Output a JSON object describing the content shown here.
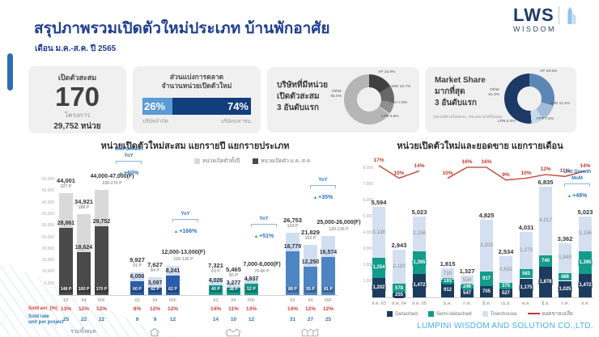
{
  "header": {
    "title": "สรุปภาพรวมเปิดตัวใหม่ประเภท บ้านพักอาศัย",
    "subtitle": "เดือน ม.ค.-ส.ค. ปี 2565",
    "logo_name": "LWS",
    "logo_sub": "WISDOM"
  },
  "stats": {
    "cumulative": {
      "label": "เปิดตัวสะสม",
      "value": "170",
      "unit_label": "โครงการ",
      "units": "29,752 หน่วย"
    },
    "market_split": {
      "title1": "ส่วนแบ่งการตลาด",
      "title2": "จำนวนหน่วยเปิดตัวใหม่",
      "left_pct": "26%",
      "left_label": "บริษัทจำกัด",
      "right_pct": "74%",
      "right_label": "บริษัทมหาชน",
      "left_color": "#5b9bd5",
      "right_color": "#123e7d"
    },
    "top_launch": {
      "title1": "บริษัทที่มีหน่วย",
      "title2": "เปิดตัวสะสม",
      "title3": "3 อันดับแรก"
    },
    "top_share": {
      "title1": "Market Share",
      "title2": "มากที่สุด",
      "title3": "3 อันดับแรก",
      "note": "(หน่วยที่ขายได้ของบ. /หน่วยขายได้ทั้งหมด)"
    }
  },
  "chart_data": [
    {
      "id": "top_launch_donut",
      "type": "pie",
      "segments": [
        {
          "label": "AP 15.9%",
          "value": 15.9,
          "color": "#404040"
        },
        {
          "label": "SIRI 10.7%",
          "value": 10.7,
          "color": "#686868"
        },
        {
          "label": "PSH 7.8%",
          "value": 7.8,
          "color": "#8f8f8f"
        },
        {
          "label": "LPN 0.6%",
          "value": 0.6,
          "color": "#dcdcdc"
        },
        {
          "label": "Other 65.0%",
          "value": 65.0,
          "color": "#b5b5b5"
        }
      ]
    },
    {
      "id": "market_share_donut",
      "type": "pie",
      "segments": [
        {
          "label": "AP 29.5%",
          "value": 29.5,
          "color": "#5b87b5"
        },
        {
          "label": "SIRI 11.2%",
          "value": 11.2,
          "color": "#a3bcd8"
        },
        {
          "label": "FPT 7.6%",
          "value": 7.6,
          "color": "#c9d8ea"
        },
        {
          "label": "LPN 0.3%",
          "value": 0.3,
          "color": "#e8eef5"
        },
        {
          "label": "Other 51.3%",
          "value": 51.3,
          "color": "#1d3a66"
        }
      ]
    },
    {
      "id": "yearly_by_type",
      "type": "bar",
      "title": "หน่วยเปิดตัวใหม่สะสม แยกรายปี แยกรายประเภท",
      "legend": [
        "หน่วยเปิดตัวทั้งปี",
        "หน่วยเปิดตัว ม.ค.-ส.ค."
      ],
      "legend_colors": [
        "#d9d9d9",
        "#4a4a4a"
      ],
      "ylim": [
        0,
        50000
      ],
      "yticks": [
        "50,000",
        "45,000",
        "40,000",
        "35,000",
        "30,000",
        "25,000",
        "20,000",
        "15,000",
        "10,000",
        "5,000",
        "-"
      ],
      "row_labels": {
        "sold_avr": "Sold avr. (%)",
        "sold_rate1": "Sold rate",
        "sold_rate2": "unit per project"
      },
      "groups": [
        {
          "key": "total",
          "name": "รวมทั้งหมด",
          "icon": "none",
          "color_full": "#d9d9d9",
          "color_partial": "#4a4a4a",
          "growth": {
            "lines": [
              "Unit Growth",
              "YoY"
            ],
            "pct": "+60%"
          },
          "bars": [
            {
              "year": "63",
              "full_label": "44,001",
              "full_value": 44001,
              "full_projects": "227 P",
              "partial_label": "28,861",
              "partial_value": 28861,
              "partial_projects": "148 P"
            },
            {
              "year": "64",
              "full_label": "34,921",
              "full_value": 34921,
              "full_projects": "188 P",
              "partial_label": "18,624",
              "partial_value": 18624,
              "partial_projects": "100 P"
            },
            {
              "year": "65F",
              "full_label": "44,000-47,000(F)",
              "full_value": 45500,
              "full_projects": "230-270 P",
              "partial_label": "29,752",
              "partial_value": 29752,
              "partial_projects": "170 P"
            }
          ],
          "sold_avr": [
            "13%",
            "12%",
            "12%"
          ],
          "sold_rate": [
            "25",
            "22",
            "22"
          ]
        },
        {
          "key": "detached",
          "name": "",
          "icon": "detached",
          "color_full": "#cfdef2",
          "color_partial": "#2b5ca8",
          "growth": {
            "lines": [
              "YoY"
            ],
            "pct": "+166%"
          },
          "bars": [
            {
              "year": "63",
              "full_label": "9,927",
              "full_value": 9927,
              "full_projects": "91 P",
              "partial_label": "6,056",
              "partial_value": 6056,
              "partial_projects": "60 P"
            },
            {
              "year": "64",
              "full_label": "7,627",
              "full_value": 7627,
              "full_projects": "84 P",
              "partial_label": "3,097",
              "partial_value": 3097,
              "partial_projects": "42 P"
            },
            {
              "year": "65F",
              "full_label": "12,000-13,000(F)",
              "full_value": 12500,
              "full_projects": "120-130 P",
              "partial_label": "8,241",
              "partial_value": 8241,
              "partial_projects": "62 P"
            }
          ],
          "sold_avr": [
            "8%",
            "12%",
            "12%"
          ],
          "sold_rate": [
            "9",
            "9",
            "12"
          ]
        },
        {
          "key": "semi_detached",
          "name": "",
          "icon": "semi",
          "color_full": "#cfdef2",
          "color_partial": "#129c8a",
          "growth": {
            "lines": [
              "YoY"
            ],
            "pct": "+51%"
          },
          "bars": [
            {
              "year": "63",
              "full_label": "7,321",
              "full_value": 7321,
              "full_projects": "63 P",
              "partial_label": "4,026",
              "partial_value": 4026,
              "partial_projects": "40 P"
            },
            {
              "year": "64",
              "full_label": "5,465",
              "full_value": 5465,
              "full_projects": "50 P",
              "partial_label": "3,277",
              "partial_value": 3277,
              "partial_projects": "38 P"
            },
            {
              "year": "65F",
              "full_label": "7,000-8,000(F)",
              "full_value": 7500,
              "full_projects": "70-80 P",
              "partial_label": "4,937",
              "partial_value": 4937,
              "partial_projects": "52 P"
            }
          ],
          "sold_avr": [
            "14%",
            "11%",
            "13%"
          ],
          "sold_rate": [
            "14",
            "10",
            "12"
          ]
        },
        {
          "key": "townhouse",
          "name": "",
          "icon": "town",
          "color_full": "#cfdef2",
          "color_partial": "#4d84c4",
          "growth": {
            "lines": [
              "YoY"
            ],
            "pct": "+35%"
          },
          "bars": [
            {
              "year": "63",
              "full_label": "26,753",
              "full_value": 26753,
              "full_projects": "124 P",
              "partial_label": "18,779",
              "partial_value": 18779,
              "partial_projects": "88 P"
            },
            {
              "year": "64",
              "full_label": "21,829",
              "full_value": 21829,
              "full_projects": "102 P",
              "partial_label": "12,250",
              "partial_value": 12250,
              "partial_projects": "55 P"
            },
            {
              "year": "65F",
              "full_label": "25,000-26,000(F)",
              "full_value": 25500,
              "full_projects": "120-130 P",
              "partial_label": "16,574",
              "partial_value": 16574,
              "partial_projects": "81 P"
            }
          ],
          "sold_avr": [
            "14%",
            "12%",
            "12%"
          ],
          "sold_rate": [
            "31",
            "27",
            "25"
          ]
        }
      ]
    },
    {
      "id": "monthly_launch_sales",
      "type": "stacked_bar_line",
      "title": "หน่วยเปิดตัวใหม่และยอดขาย แยกรายเดือน",
      "ylim": [
        0,
        8000
      ],
      "yticks": [
        "8,000",
        "7,000",
        "6,000",
        "5,000",
        "4,000",
        "3,000",
        "2,000",
        "1,000",
        "-"
      ],
      "categories": [
        "ส.ค. 63",
        "ส.ค. 64",
        "ส.ค. 65",
        "ม.ค.",
        "ก.พ.",
        "มี.ค.",
        "เม.ย.",
        "พ.ค.",
        "มิ.ย.",
        "ก.ค.",
        "ส.ค."
      ],
      "series": [
        {
          "name": "Detached",
          "color": "#1c3b5e",
          "values": [
            1202,
            255,
            1472,
            912,
            547,
            705,
            527,
            1175,
            1878,
            1025,
            1472
          ]
        },
        {
          "name": "Semi-detached",
          "color": "#129c8a",
          "values": [
            1254,
            578,
            1395,
            193,
            246,
            917,
            375,
            583,
            740,
            488,
            1395
          ]
        },
        {
          "name": "Townhouse",
          "color": "#d4e0f0",
          "values": [
            3138,
            2110,
            2156,
            710,
            534,
            3203,
            1632,
            2273,
            4217,
            1849,
            2156
          ]
        }
      ],
      "totals": [
        "5,594",
        "2,943",
        "5,023",
        "1,815",
        "1,327",
        "4,825",
        "2,534",
        "4,031",
        "6,835",
        "3,362",
        "5,023"
      ],
      "line": {
        "name": "ยอดขายเฉลี่ย",
        "color": "#c0392b",
        "values_pct": [
          17,
          10,
          14,
          10,
          16,
          16,
          9,
          10,
          12,
          11,
          14
        ]
      },
      "growth": {
        "lines": [
          "Unit Growth",
          "MoM"
        ],
        "pct": "+49%"
      }
    }
  ],
  "footer": {
    "company": "LUMPINI WISDOM AND SOLUTION CO.,LTD."
  }
}
